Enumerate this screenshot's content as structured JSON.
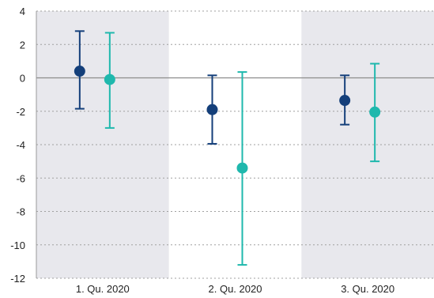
{
  "chart_data": {
    "type": "scatter",
    "subtype": "error-bar",
    "title": "",
    "xlabel": "",
    "ylabel": "",
    "ylim": [
      -12,
      4
    ],
    "yticks": [
      4,
      2,
      0,
      -2,
      -4,
      -6,
      -8,
      -10,
      -12
    ],
    "grid": "horizontal dotted",
    "zero_line": true,
    "categories": [
      "1. Qu. 2020",
      "2. Qu. 2020",
      "3. Qu. 2020"
    ],
    "shaded_categories": [
      true,
      false,
      true
    ],
    "series": [
      {
        "color": "#143f7a",
        "points": [
          {
            "value": 0.4,
            "low": -1.85,
            "high": 2.8
          },
          {
            "value": -1.9,
            "low": -3.95,
            "high": 0.15
          },
          {
            "value": -1.35,
            "low": -2.8,
            "high": 0.15
          }
        ]
      },
      {
        "color": "#1fb8ad",
        "points": [
          {
            "value": -0.1,
            "low": -3.0,
            "high": 2.7
          },
          {
            "value": -5.4,
            "low": -11.2,
            "high": 0.35
          },
          {
            "value": -2.05,
            "low": -5.0,
            "high": 0.85
          }
        ]
      }
    ]
  },
  "colors": {
    "shade": "#e8e8ed",
    "grid": "#a0a0a0",
    "zero_line": "#8c8c8c",
    "axis": "#9a9a9a"
  }
}
